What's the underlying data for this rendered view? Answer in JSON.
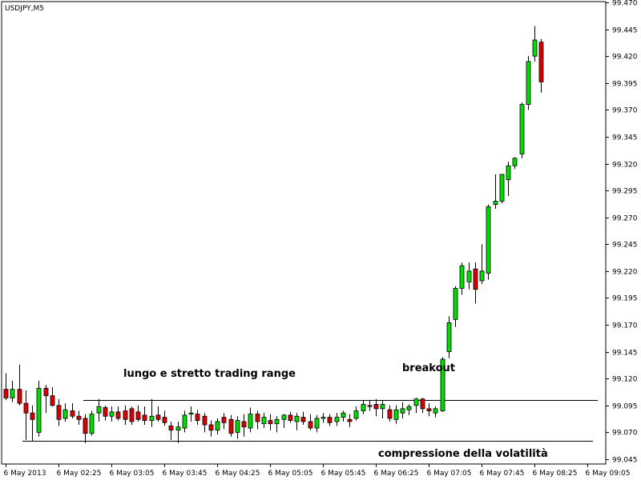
{
  "chart_data": {
    "type": "candlestick",
    "symbol": "USDJPY,M5",
    "ylim": [
      99.045,
      99.47
    ],
    "y_ticks": [
      "99.470",
      "99.445",
      "99.420",
      "99.395",
      "99.370",
      "99.345",
      "99.320",
      "99.295",
      "99.270",
      "99.245",
      "99.220",
      "99.195",
      "99.170",
      "99.145",
      "99.120",
      "99.095",
      "99.070",
      "99.045"
    ],
    "x_ticks": [
      {
        "index": 0,
        "label": "6 May 2013"
      },
      {
        "index": 8,
        "label": "6 May 02:25"
      },
      {
        "index": 16,
        "label": "6 May 03:05"
      },
      {
        "index": 24,
        "label": "6 May 03:45"
      },
      {
        "index": 32,
        "label": "6 May 04:25"
      },
      {
        "index": 40,
        "label": "6 May 05:05"
      },
      {
        "index": 48,
        "label": "6 May 05:45"
      },
      {
        "index": 56,
        "label": "6 May 06:25"
      },
      {
        "index": 64,
        "label": "6 May 07:05"
      },
      {
        "index": 72,
        "label": "6 May 07:45"
      },
      {
        "index": 80,
        "label": "6 May 08:25"
      },
      {
        "index": 88,
        "label": "6 May 09:05"
      }
    ],
    "colors": {
      "up": "#00dd00",
      "down": "#dd0000",
      "wick": "#000000",
      "axis": "#000000"
    },
    "candles": [
      {
        "o": 99.11,
        "h": 99.125,
        "l": 99.1,
        "c": 99.102
      },
      {
        "o": 99.102,
        "h": 99.118,
        "l": 99.098,
        "c": 99.11
      },
      {
        "o": 99.11,
        "h": 99.133,
        "l": 99.095,
        "c": 99.097
      },
      {
        "o": 99.097,
        "h": 99.109,
        "l": 99.063,
        "c": 99.088
      },
      {
        "o": 99.088,
        "h": 99.095,
        "l": 99.062,
        "c": 99.082
      },
      {
        "o": 99.07,
        "h": 99.118,
        "l": 99.066,
        "c": 99.111
      },
      {
        "o": 99.111,
        "h": 99.114,
        "l": 99.088,
        "c": 99.104
      },
      {
        "o": 99.104,
        "h": 99.112,
        "l": 99.094,
        "c": 99.095
      },
      {
        "o": 99.095,
        "h": 99.101,
        "l": 99.076,
        "c": 99.082
      },
      {
        "o": 99.083,
        "h": 99.097,
        "l": 99.08,
        "c": 99.091
      },
      {
        "o": 99.09,
        "h": 99.097,
        "l": 99.083,
        "c": 99.085
      },
      {
        "o": 99.085,
        "h": 99.09,
        "l": 99.077,
        "c": 99.082
      },
      {
        "o": 99.083,
        "h": 99.087,
        "l": 99.06,
        "c": 99.069
      },
      {
        "o": 99.069,
        "h": 99.09,
        "l": 99.067,
        "c": 99.087
      },
      {
        "o": 99.088,
        "h": 99.101,
        "l": 99.08,
        "c": 99.094
      },
      {
        "o": 99.093,
        "h": 99.095,
        "l": 99.081,
        "c": 99.085
      },
      {
        "o": 99.085,
        "h": 99.094,
        "l": 99.08,
        "c": 99.089
      },
      {
        "o": 99.089,
        "h": 99.094,
        "l": 99.081,
        "c": 99.083
      },
      {
        "o": 99.09,
        "h": 99.095,
        "l": 99.077,
        "c": 99.082
      },
      {
        "o": 99.092,
        "h": 99.094,
        "l": 99.077,
        "c": 99.08
      },
      {
        "o": 99.089,
        "h": 99.095,
        "l": 99.08,
        "c": 99.082
      },
      {
        "o": 99.086,
        "h": 99.094,
        "l": 99.077,
        "c": 99.081
      },
      {
        "o": 99.081,
        "h": 99.101,
        "l": 99.075,
        "c": 99.085
      },
      {
        "o": 99.086,
        "h": 99.094,
        "l": 99.08,
        "c": 99.082
      },
      {
        "o": 99.084,
        "h": 99.09,
        "l": 99.076,
        "c": 99.079
      },
      {
        "o": 99.076,
        "h": 99.08,
        "l": 99.063,
        "c": 99.072
      },
      {
        "o": 99.072,
        "h": 99.08,
        "l": 99.06,
        "c": 99.075
      },
      {
        "o": 99.074,
        "h": 99.09,
        "l": 99.07,
        "c": 99.086
      },
      {
        "o": 99.087,
        "h": 99.094,
        "l": 99.08,
        "c": 99.088
      },
      {
        "o": 99.087,
        "h": 99.091,
        "l": 99.077,
        "c": 99.081
      },
      {
        "o": 99.085,
        "h": 99.088,
        "l": 99.07,
        "c": 99.077
      },
      {
        "o": 99.077,
        "h": 99.081,
        "l": 99.066,
        "c": 99.072
      },
      {
        "o": 99.072,
        "h": 99.083,
        "l": 99.068,
        "c": 99.08
      },
      {
        "o": 99.084,
        "h": 99.088,
        "l": 99.073,
        "c": 99.079
      },
      {
        "o": 99.082,
        "h": 99.086,
        "l": 99.066,
        "c": 99.069
      },
      {
        "o": 99.07,
        "h": 99.085,
        "l": 99.064,
        "c": 99.081
      },
      {
        "o": 99.08,
        "h": 99.087,
        "l": 99.066,
        "c": 99.075
      },
      {
        "o": 99.074,
        "h": 99.093,
        "l": 99.07,
        "c": 99.087
      },
      {
        "o": 99.087,
        "h": 99.09,
        "l": 99.073,
        "c": 99.08
      },
      {
        "o": 99.078,
        "h": 99.088,
        "l": 99.074,
        "c": 99.084
      },
      {
        "o": 99.081,
        "h": 99.087,
        "l": 99.072,
        "c": 99.078
      },
      {
        "o": 99.078,
        "h": 99.085,
        "l": 99.07,
        "c": 99.082
      },
      {
        "o": 99.082,
        "h": 99.087,
        "l": 99.074,
        "c": 99.086
      },
      {
        "o": 99.086,
        "h": 99.089,
        "l": 99.079,
        "c": 99.081
      },
      {
        "o": 99.08,
        "h": 99.088,
        "l": 99.072,
        "c": 99.085
      },
      {
        "o": 99.084,
        "h": 99.089,
        "l": 99.077,
        "c": 99.08
      },
      {
        "o": 99.08,
        "h": 99.087,
        "l": 99.072,
        "c": 99.074
      },
      {
        "o": 99.074,
        "h": 99.086,
        "l": 99.07,
        "c": 99.083
      },
      {
        "o": 99.083,
        "h": 99.088,
        "l": 99.079,
        "c": 99.084
      },
      {
        "o": 99.084,
        "h": 99.087,
        "l": 99.076,
        "c": 99.079
      },
      {
        "o": 99.08,
        "h": 99.088,
        "l": 99.076,
        "c": 99.084
      },
      {
        "o": 99.084,
        "h": 99.09,
        "l": 99.08,
        "c": 99.088
      },
      {
        "o": 99.082,
        "h": 99.087,
        "l": 99.075,
        "c": 99.08
      },
      {
        "o": 99.083,
        "h": 99.094,
        "l": 99.081,
        "c": 99.09
      },
      {
        "o": 99.09,
        "h": 99.1,
        "l": 99.087,
        "c": 99.096
      },
      {
        "o": 99.095,
        "h": 99.1,
        "l": 99.09,
        "c": 99.094
      },
      {
        "o": 99.096,
        "h": 99.101,
        "l": 99.085,
        "c": 99.092
      },
      {
        "o": 99.092,
        "h": 99.1,
        "l": 99.083,
        "c": 99.096
      },
      {
        "o": 99.091,
        "h": 99.095,
        "l": 99.08,
        "c": 99.083
      },
      {
        "o": 99.082,
        "h": 99.095,
        "l": 99.078,
        "c": 99.091
      },
      {
        "o": 99.088,
        "h": 99.098,
        "l": 99.083,
        "c": 99.092
      },
      {
        "o": 99.091,
        "h": 99.096,
        "l": 99.086,
        "c": 99.094
      },
      {
        "o": 99.095,
        "h": 99.102,
        "l": 99.088,
        "c": 99.101
      },
      {
        "o": 99.101,
        "h": 99.102,
        "l": 99.088,
        "c": 99.092
      },
      {
        "o": 99.092,
        "h": 99.097,
        "l": 99.085,
        "c": 99.09
      },
      {
        "o": 99.088,
        "h": 99.094,
        "l": 99.084,
        "c": 99.092
      },
      {
        "o": 99.09,
        "h": 99.14,
        "l": 99.089,
        "c": 99.138
      },
      {
        "o": 99.145,
        "h": 99.178,
        "l": 99.139,
        "c": 99.172
      },
      {
        "o": 99.175,
        "h": 99.206,
        "l": 99.168,
        "c": 99.204
      },
      {
        "o": 99.204,
        "h": 99.228,
        "l": 99.198,
        "c": 99.225
      },
      {
        "o": 99.21,
        "h": 99.228,
        "l": 99.203,
        "c": 99.22
      },
      {
        "o": 99.222,
        "h": 99.228,
        "l": 99.19,
        "c": 99.203
      },
      {
        "o": 99.211,
        "h": 99.245,
        "l": 99.208,
        "c": 99.22
      },
      {
        "o": 99.218,
        "h": 99.282,
        "l": 99.212,
        "c": 99.28
      },
      {
        "o": 99.282,
        "h": 99.31,
        "l": 99.278,
        "c": 99.285
      },
      {
        "o": 99.285,
        "h": 99.31,
        "l": 99.283,
        "c": 99.31
      },
      {
        "o": 99.305,
        "h": 99.322,
        "l": 99.29,
        "c": 99.318
      },
      {
        "o": 99.318,
        "h": 99.326,
        "l": 99.315,
        "c": 99.325
      },
      {
        "o": 99.329,
        "h": 99.377,
        "l": 99.325,
        "c": 99.375
      },
      {
        "o": 99.375,
        "h": 99.42,
        "l": 99.37,
        "c": 99.415
      },
      {
        "o": 99.42,
        "h": 99.448,
        "l": 99.415,
        "c": 99.435
      },
      {
        "o": 99.433,
        "h": 99.436,
        "l": 99.386,
        "c": 99.396
      }
    ],
    "annotations": [
      {
        "text": "lungo e stretto trading range"
      },
      {
        "text": "breakout"
      },
      {
        "text": "compressione della volatilità"
      }
    ],
    "range_lines": {
      "upper": 99.1,
      "lower": 99.062
    }
  }
}
